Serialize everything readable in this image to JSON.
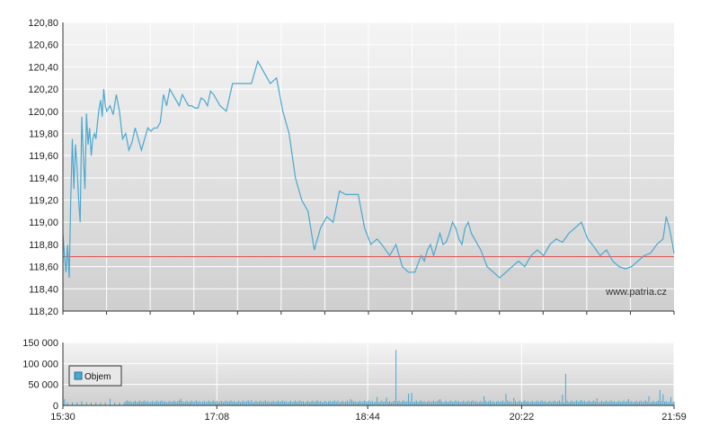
{
  "watermark": "www.patria.cz",
  "colors": {
    "price_line": "#4aa8d0",
    "reference_line": "#e05050",
    "volume_bar": "#4aa8d0",
    "grid": "#ffffff",
    "axis": "#333333",
    "bg_top": "#f4f4f4",
    "bg_bottom": "#cfcfcf"
  },
  "chart_data": [
    {
      "type": "line",
      "panel": "price",
      "ylim": [
        118.2,
        120.8
      ],
      "y_ticks": [
        "118,20",
        "118,40",
        "118,60",
        "118,80",
        "119,00",
        "119,20",
        "119,40",
        "119,60",
        "119,80",
        "120,00",
        "120,20",
        "120,40",
        "120,60",
        "120,80"
      ],
      "y_tick_values": [
        118.2,
        118.4,
        118.6,
        118.8,
        119.0,
        119.2,
        119.4,
        119.6,
        119.8,
        120.0,
        120.2,
        120.4,
        120.6,
        120.8
      ],
      "reference_value": 118.69,
      "x_range_minutes": [
        0,
        389
      ],
      "series": [
        {
          "x": [
            0,
            1,
            2,
            3,
            4,
            5,
            6,
            7,
            8,
            9,
            10,
            11,
            12,
            13,
            14,
            15,
            16,
            17,
            18,
            19,
            20,
            21,
            22,
            23,
            24,
            25,
            26,
            27,
            28,
            30,
            32,
            34,
            36,
            38,
            40,
            42,
            44,
            46,
            48,
            50,
            52,
            54,
            56,
            58,
            60,
            62,
            64,
            66,
            68,
            70,
            72,
            74,
            76,
            78,
            80,
            82,
            84,
            86,
            88,
            90,
            92,
            94,
            96,
            98,
            100,
            104,
            108,
            112,
            116,
            120,
            124,
            128,
            132,
            136,
            140,
            144,
            148,
            152,
            156,
            160,
            164,
            168,
            172,
            176,
            180,
            184,
            188,
            192,
            196,
            200,
            204,
            208,
            212,
            216,
            220,
            224,
            228,
            230,
            232,
            234,
            236,
            238,
            240,
            242,
            244,
            246,
            248,
            250,
            252,
            254,
            256,
            258,
            260,
            262,
            266,
            270,
            274,
            278,
            282,
            286,
            290,
            294,
            298,
            302,
            306,
            310,
            314,
            318,
            322,
            326,
            330,
            334,
            338,
            342,
            346,
            350,
            354,
            358,
            362,
            366,
            370,
            374,
            378,
            382,
            384,
            386,
            388,
            389
          ],
          "y": [
            118.9,
            118.7,
            118.55,
            118.8,
            118.5,
            119.2,
            119.75,
            119.3,
            119.7,
            119.5,
            119.2,
            119.0,
            119.95,
            119.6,
            119.3,
            119.98,
            119.7,
            119.85,
            119.6,
            119.75,
            119.8,
            119.75,
            119.9,
            120.02,
            120.1,
            119.95,
            120.2,
            120.05,
            120.0,
            120.05,
            119.97,
            120.15,
            120.0,
            119.75,
            119.8,
            119.65,
            119.72,
            119.85,
            119.75,
            119.65,
            119.75,
            119.85,
            119.82,
            119.85,
            119.85,
            119.9,
            120.15,
            120.05,
            120.2,
            120.15,
            120.1,
            120.05,
            120.15,
            120.1,
            120.05,
            120.05,
            120.03,
            120.03,
            120.12,
            120.1,
            120.05,
            120.18,
            120.15,
            120.1,
            120.05,
            120.0,
            120.25,
            120.25,
            120.25,
            120.25,
            120.45,
            120.35,
            120.25,
            120.3,
            120.0,
            119.8,
            119.4,
            119.2,
            119.1,
            118.75,
            118.95,
            119.05,
            119.0,
            119.28,
            119.25,
            119.25,
            119.25,
            118.95,
            118.8,
            118.85,
            118.78,
            118.7,
            118.8,
            118.6,
            118.55,
            118.55,
            118.7,
            118.65,
            118.75,
            118.8,
            118.7,
            118.8,
            118.9,
            118.8,
            118.82,
            118.9,
            119.0,
            118.95,
            118.85,
            118.8,
            118.95,
            119.0,
            118.9,
            118.85,
            118.75,
            118.6,
            118.55,
            118.5,
            118.55,
            118.6,
            118.65,
            118.6,
            118.7,
            118.75,
            118.7,
            118.8,
            118.85,
            118.82,
            118.9,
            118.95,
            119.0,
            118.85,
            118.78,
            118.7,
            118.75,
            118.65,
            118.6,
            118.58,
            118.6,
            118.65,
            118.7,
            118.72,
            118.8,
            118.85,
            119.05,
            118.95,
            118.8,
            118.72
          ]
        }
      ]
    },
    {
      "type": "bar",
      "panel": "volume",
      "ylim": [
        0,
        150000
      ],
      "y_ticks": [
        "0",
        "50 000",
        "100 000",
        "150 000"
      ],
      "y_tick_values": [
        0,
        50000,
        100000,
        150000
      ],
      "x_range_minutes": [
        0,
        389
      ],
      "legend": "Objem",
      "base_volume": 12000,
      "spikes": [
        {
          "x": 1,
          "v": 15000
        },
        {
          "x": 12,
          "v": 10000
        },
        {
          "x": 30,
          "v": 16000
        },
        {
          "x": 75,
          "v": 16000
        },
        {
          "x": 120,
          "v": 13000
        },
        {
          "x": 175,
          "v": 12000
        },
        {
          "x": 183,
          "v": 15000
        },
        {
          "x": 200,
          "v": 20000
        },
        {
          "x": 206,
          "v": 19000
        },
        {
          "x": 212,
          "v": 132000
        },
        {
          "x": 220,
          "v": 28000
        },
        {
          "x": 222,
          "v": 30000
        },
        {
          "x": 240,
          "v": 15000
        },
        {
          "x": 268,
          "v": 22000
        },
        {
          "x": 282,
          "v": 28000
        },
        {
          "x": 287,
          "v": 18000
        },
        {
          "x": 318,
          "v": 26000
        },
        {
          "x": 320,
          "v": 75000
        },
        {
          "x": 330,
          "v": 13000
        },
        {
          "x": 340,
          "v": 17000
        },
        {
          "x": 360,
          "v": 15000
        },
        {
          "x": 373,
          "v": 22000
        },
        {
          "x": 380,
          "v": 37000
        },
        {
          "x": 382,
          "v": 27000
        },
        {
          "x": 387,
          "v": 20000
        }
      ]
    }
  ],
  "x_axis": {
    "ticks": [
      "15:30",
      "17:08",
      "18:44",
      "20:22",
      "21:59"
    ],
    "tick_minutes": [
      0,
      98,
      194,
      292,
      389
    ],
    "minor_tick_count": 14
  }
}
